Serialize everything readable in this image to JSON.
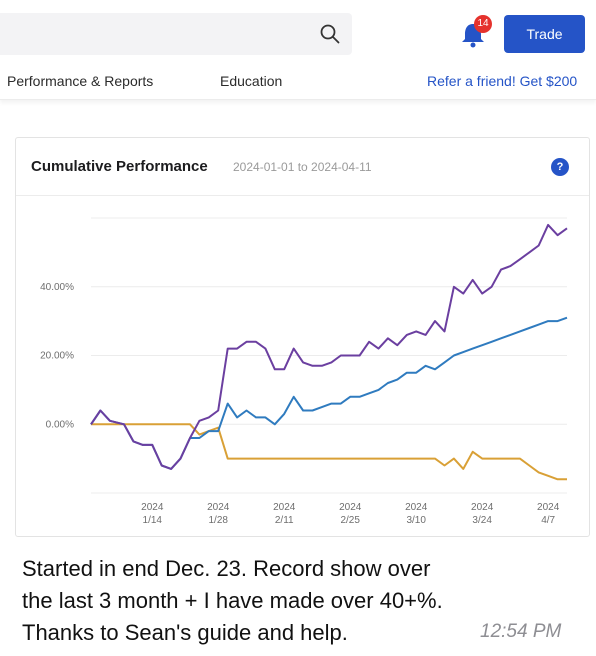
{
  "header": {
    "search_icon": "search-icon",
    "bell_icon": "bell-icon",
    "notification_count": "14",
    "trade_label": "Trade",
    "accent_color": "#2554c7"
  },
  "nav": {
    "performance": "Performance & Reports",
    "education": "Education",
    "refer": "Refer a friend! Get $200"
  },
  "card": {
    "title": "Cumulative Performance",
    "date_range": "2024-01-01 to 2024-04-11",
    "help_label": "?"
  },
  "chart_data": {
    "type": "line",
    "x_unit": "date",
    "x": [
      "2024-01-01",
      "2024-01-03",
      "2024-01-05",
      "2024-01-08",
      "2024-01-10",
      "2024-01-12",
      "2024-01-14",
      "2024-01-16",
      "2024-01-18",
      "2024-01-20",
      "2024-01-22",
      "2024-01-24",
      "2024-01-26",
      "2024-01-28",
      "2024-01-30",
      "2024-02-01",
      "2024-02-03",
      "2024-02-05",
      "2024-02-07",
      "2024-02-09",
      "2024-02-11",
      "2024-02-13",
      "2024-02-15",
      "2024-02-17",
      "2024-02-19",
      "2024-02-21",
      "2024-02-23",
      "2024-02-25",
      "2024-02-27",
      "2024-02-29",
      "2024-03-02",
      "2024-03-04",
      "2024-03-06",
      "2024-03-08",
      "2024-03-10",
      "2024-03-12",
      "2024-03-14",
      "2024-03-16",
      "2024-03-18",
      "2024-03-20",
      "2024-03-22",
      "2024-03-24",
      "2024-03-26",
      "2024-03-28",
      "2024-03-30",
      "2024-04-01",
      "2024-04-03",
      "2024-04-05",
      "2024-04-07",
      "2024-04-09",
      "2024-04-11"
    ],
    "series": [
      {
        "color": "#6b3fa0",
        "values": [
          0,
          4,
          1,
          0,
          -5,
          -6,
          -6,
          -12,
          -13,
          -10,
          -4,
          1,
          2,
          4,
          22,
          22,
          24,
          24,
          22,
          16,
          16,
          22,
          18,
          17,
          17,
          18,
          20,
          20,
          20,
          24,
          22,
          25,
          23,
          26,
          27,
          26,
          30,
          27,
          40,
          38,
          42,
          38,
          40,
          45,
          46,
          48,
          50,
          52,
          58,
          55,
          57
        ]
      },
      {
        "color": "#2f7bbf",
        "values": [
          0,
          4,
          1,
          0,
          -5,
          -6,
          -6,
          -12,
          -13,
          -10,
          -4,
          -4,
          -2,
          -2,
          6,
          2,
          4,
          2,
          2,
          0,
          3,
          8,
          4,
          4,
          5,
          6,
          6,
          8,
          8,
          9,
          10,
          12,
          13,
          15,
          15,
          17,
          16,
          18,
          20,
          21,
          22,
          23,
          24,
          25,
          26,
          27,
          28,
          29,
          30,
          30,
          31
        ]
      },
      {
        "color": "#d9a036",
        "values": [
          0,
          0,
          0,
          0,
          0,
          0,
          0,
          0,
          0,
          0,
          0,
          -3,
          -2,
          -1,
          -10,
          -10,
          -10,
          -10,
          -10,
          -10,
          -10,
          -10,
          -10,
          -10,
          -10,
          -10,
          -10,
          -10,
          -10,
          -10,
          -10,
          -10,
          -10,
          -10,
          -10,
          -10,
          -10,
          -12,
          -10,
          -13,
          -8,
          -10,
          -10,
          -10,
          -10,
          -10,
          -12,
          -14,
          -15,
          -16,
          -16
        ]
      }
    ],
    "yticks": [
      "40.00%",
      "20.00%",
      "0.00%"
    ],
    "ytick_values": [
      40,
      20,
      0
    ],
    "ylim": [
      -20,
      60
    ],
    "xtick_top": [
      "2024",
      "2024",
      "2024",
      "2024",
      "2024",
      "2024",
      "2024"
    ],
    "xtick_bottom": [
      "1/14",
      "1/28",
      "2/11",
      "2/25",
      "3/10",
      "3/24",
      "4/7"
    ],
    "xtick_dates": [
      "2024-01-14",
      "2024-01-28",
      "2024-02-11",
      "2024-02-25",
      "2024-03-10",
      "2024-03-24",
      "2024-04-07"
    ],
    "grid": true,
    "legend": "none"
  },
  "message": {
    "line1": "Started in end Dec. 23. Record show over",
    "line2": "the last 3 month + I have made over 40+%.",
    "line3": "Thanks to Sean's guide and help.",
    "time": "12:54 PM"
  }
}
